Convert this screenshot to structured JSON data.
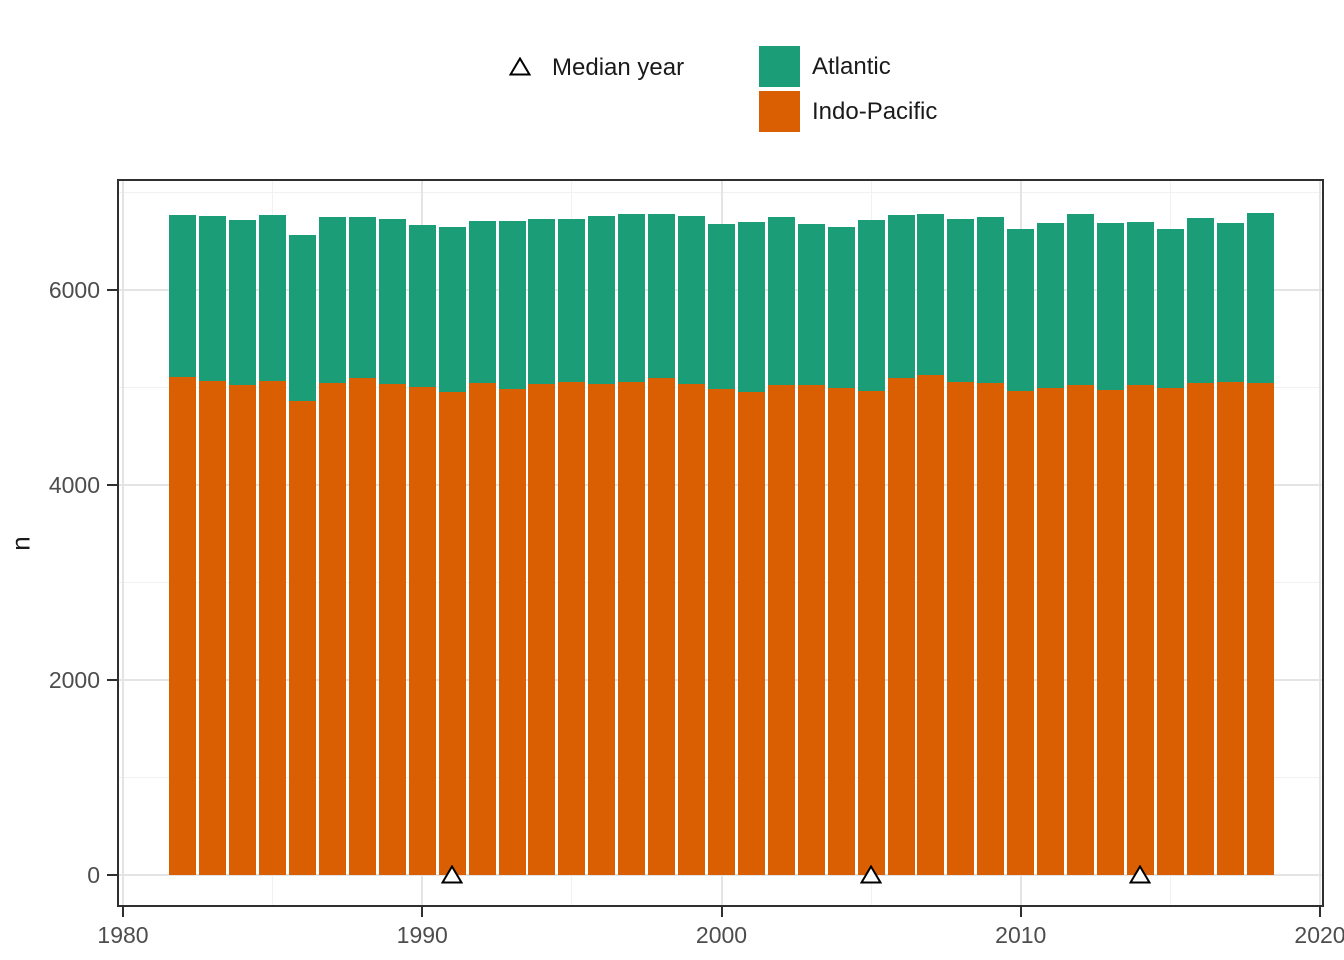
{
  "legend": {
    "median_year_label": "Median year",
    "median_year_symbol": "open-triangle-icon",
    "series": [
      {
        "label": "Atlantic",
        "color": "#1B9E77"
      },
      {
        "label": "Indo-Pacific",
        "color": "#D95F02"
      }
    ]
  },
  "axes": {
    "y": {
      "title": "n",
      "major_ticks": [
        0,
        2000,
        4000,
        6000
      ],
      "minor_gridlines": [
        1000,
        3000,
        5000,
        7000
      ]
    },
    "x": {
      "title": "",
      "major_ticks": [
        1980,
        1990,
        2000,
        2010,
        2020
      ],
      "minor_gridlines": [
        1985,
        1995,
        2005,
        2015
      ]
    }
  },
  "chart_data": {
    "type": "bar",
    "stacked": true,
    "title": "",
    "xlabel": "",
    "ylabel": "n",
    "legend_position": "top-center",
    "grid": true,
    "xlim": [
      1980,
      2020
    ],
    "ylim": [
      0,
      7000
    ],
    "categories": [
      1982,
      1983,
      1984,
      1985,
      1986,
      1987,
      1988,
      1989,
      1990,
      1991,
      1992,
      1993,
      1994,
      1995,
      1996,
      1997,
      1998,
      1999,
      2000,
      2001,
      2002,
      2003,
      2004,
      2005,
      2006,
      2007,
      2008,
      2009,
      2010,
      2011,
      2012,
      2013,
      2014,
      2015,
      2016,
      2017,
      2018
    ],
    "series": [
      {
        "name": "Indo-Pacific",
        "color": "#D95F02",
        "stack_order": "bottom",
        "values": [
          5110,
          5070,
          5025,
          5070,
          4865,
          5045,
          5100,
          5035,
          5010,
          4955,
          5045,
          4980,
          5040,
          5055,
          5040,
          5055,
          5100,
          5040,
          4985,
          4955,
          5030,
          5030,
          4995,
          4965,
          5095,
          5130,
          5060,
          5045,
          4965,
          4990,
          5025,
          4975,
          5030,
          4995,
          5045,
          5055,
          5050
        ]
      },
      {
        "name": "Atlantic",
        "color": "#1B9E77",
        "stack_order": "top",
        "values": [
          1660,
          1690,
          1695,
          1695,
          1695,
          1700,
          1645,
          1695,
          1655,
          1690,
          1665,
          1730,
          1690,
          1670,
          1720,
          1725,
          1680,
          1720,
          1690,
          1740,
          1720,
          1645,
          1650,
          1755,
          1675,
          1650,
          1665,
          1705,
          1665,
          1700,
          1755,
          1710,
          1670,
          1630,
          1695,
          1630,
          1740
        ]
      }
    ],
    "median_year_markers": [
      1991,
      2005,
      2014
    ],
    "marker_style": {
      "shape": "open-triangle",
      "fill": "#ffffff",
      "stroke": "#000000",
      "y_value": 0
    }
  },
  "colors": {
    "atlantic": "#1B9E77",
    "indo_pacific": "#D95F02",
    "panel_border": "#2f2f2f",
    "grid_major": "#e4e4e4",
    "grid_minor": "#f1f1f1",
    "tick_text": "#4d4d4d",
    "background": "#ffffff"
  }
}
